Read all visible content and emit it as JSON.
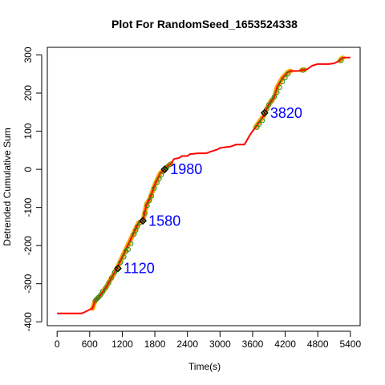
{
  "chart_data": {
    "type": "line",
    "title": "Plot For RandomSeed_1653524338",
    "xlabel": "Time(s)",
    "ylabel": "Detrended Cumulative Sum",
    "xlim": [
      -180,
      5580
    ],
    "ylim": [
      -410,
      320
    ],
    "xticks": [
      0,
      600,
      1200,
      1800,
      2400,
      3000,
      3600,
      4200,
      4800,
      5400
    ],
    "yticks": [
      -400,
      -300,
      -200,
      -100,
      0,
      100,
      200,
      300
    ],
    "grid": false,
    "legend": "none",
    "colors": {
      "line": "#ff0000",
      "highlight": "#ffa500",
      "circles": "#228b22",
      "annotation": "#0000ff",
      "marker": "#000000"
    },
    "series": [
      {
        "x": [
          0,
          450,
          500,
          600,
          650,
          700,
          800,
          900,
          1000,
          1100,
          1200,
          1300,
          1400,
          1500,
          1580,
          1650,
          1700,
          1800,
          1900,
          1980,
          2050,
          2100,
          2150,
          2250,
          2300,
          2400,
          2450,
          2600,
          2750,
          2800,
          2950,
          3000,
          3100,
          3200,
          3300,
          3400,
          3450,
          3550,
          3600,
          3700,
          3800,
          3820,
          3900,
          4000,
          4050,
          4150,
          4250,
          4300,
          4450,
          4500,
          4600,
          4700,
          4800,
          5000,
          5100,
          5200,
          5250,
          5300,
          5400
        ],
        "y": [
          -378,
          -378,
          -375,
          -368,
          -365,
          -345,
          -330,
          -310,
          -285,
          -260,
          -230,
          -200,
          -170,
          -140,
          -135,
          -90,
          -80,
          -40,
          -10,
          0,
          10,
          15,
          27,
          30,
          35,
          35,
          40,
          42,
          42,
          45,
          52,
          56,
          58,
          60,
          65,
          65,
          65,
          90,
          100,
          120,
          140,
          148,
          170,
          190,
          215,
          240,
          255,
          258,
          258,
          260,
          262,
          272,
          276,
          276,
          278,
          285,
          292,
          293,
          293
        ]
      }
    ],
    "highlight_ranges": [
      [
        650,
        2100
      ],
      [
        3650,
        4300
      ],
      [
        4500,
        4560
      ],
      [
        5200,
        5260
      ]
    ],
    "circle_points": {
      "x": [
        700,
        730,
        760,
        800,
        840,
        900,
        950,
        1000,
        1060,
        1120,
        1170,
        1230,
        1270,
        1310,
        1360,
        1420,
        1450,
        1480,
        1530,
        1580,
        1620,
        1660,
        1700,
        1740,
        1790,
        1840,
        1880,
        1920,
        1960,
        1980,
        2020,
        2070,
        3680,
        3720,
        3780,
        3820,
        3860,
        3900,
        3950,
        4000,
        4050,
        4100,
        4150,
        4200,
        4250,
        4530,
        5230
      ],
      "y": [
        -345,
        -340,
        -336,
        -330,
        -320,
        -310,
        -298,
        -285,
        -270,
        -260,
        -244,
        -230,
        -215,
        -210,
        -195,
        -170,
        -160,
        -150,
        -140,
        -135,
        -115,
        -95,
        -82,
        -70,
        -50,
        -35,
        -25,
        -15,
        -5,
        0,
        5,
        12,
        110,
        118,
        128,
        148,
        158,
        170,
        180,
        190,
        202,
        215,
        230,
        240,
        250,
        260,
        285
      ]
    },
    "markers": [
      {
        "x": 1120,
        "y": -260
      },
      {
        "x": 1580,
        "y": -135
      },
      {
        "x": 1980,
        "y": 0
      },
      {
        "x": 3820,
        "y": 148
      }
    ],
    "annotations": [
      {
        "x": 1120,
        "y": -260,
        "text": "1120"
      },
      {
        "x": 1580,
        "y": -135,
        "text": "1580"
      },
      {
        "x": 1980,
        "y": 0,
        "text": "1980"
      },
      {
        "x": 3820,
        "y": 148,
        "text": "3820"
      }
    ]
  }
}
